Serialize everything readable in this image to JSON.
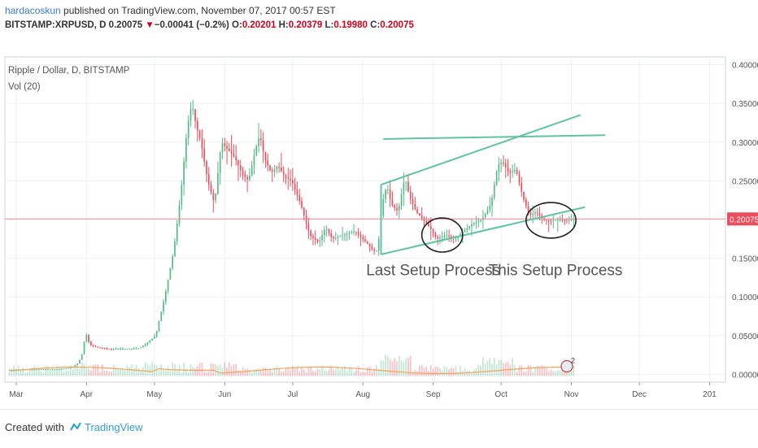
{
  "header": {
    "author": "hardacoskun",
    "published_text": " published on TradingView.com, November 07, 2017 00:57 EST",
    "symbol": "BITSTAMP:XRPUSD, D",
    "last": "0.20075",
    "change": "−0.00041 (−0.2%)",
    "o_label": "O:",
    "o_value": "0.20201",
    "h_label": "H:",
    "h_value": "0.20379",
    "l_label": "L:",
    "l_value": "0.19980",
    "c_label": "C:",
    "c_value": "0.20075"
  },
  "chart_data": {
    "type": "candlestick",
    "title": "Ripple / Dollar, D, BITSTAMP",
    "indicator": "Vol (20)",
    "y_ticks": [
      "0.40000",
      "0.35000",
      "0.30000",
      "0.25000",
      "0.20000",
      "0.15000",
      "0.10000",
      "0.05000",
      "0.00000"
    ],
    "y_tick_values": [
      0.4,
      0.35,
      0.3,
      0.25,
      0.2,
      0.15,
      0.1,
      0.05,
      0.0
    ],
    "ylim": [
      -0.01,
      0.41
    ],
    "x_ticks": [
      "Mar",
      "Apr",
      "May",
      "Jun",
      "Jul",
      "Aug",
      "Sep",
      "Oct",
      "Nov",
      "Dec",
      "201"
    ],
    "x_tick_days": [
      0,
      31,
      61,
      92,
      122,
      153,
      184,
      214,
      245,
      275,
      306
    ],
    "price_label": "0.20075",
    "price_value": 0.20075,
    "grid": true,
    "colors": {
      "up": "#53b987",
      "down": "#eb4d5c",
      "channel": "#5fc4a0",
      "price_line": "#f08a93",
      "volume_ma": "#f5a05a"
    },
    "price_path": [
      [
        -3,
        0.006
      ],
      [
        0,
        0.0063
      ],
      [
        10,
        0.0065
      ],
      [
        20,
        0.0068
      ],
      [
        25,
        0.009
      ],
      [
        28,
        0.015
      ],
      [
        30,
        0.03
      ],
      [
        31,
        0.055
      ],
      [
        33,
        0.038
      ],
      [
        36,
        0.035
      ],
      [
        42,
        0.033
      ],
      [
        50,
        0.033
      ],
      [
        55,
        0.034
      ],
      [
        58,
        0.04
      ],
      [
        62,
        0.05
      ],
      [
        66,
        0.1
      ],
      [
        70,
        0.16
      ],
      [
        73,
        0.23
      ],
      [
        76,
        0.32
      ],
      [
        78,
        0.35
      ],
      [
        80,
        0.32
      ],
      [
        82,
        0.3
      ],
      [
        85,
        0.25
      ],
      [
        88,
        0.22
      ],
      [
        91,
        0.3
      ],
      [
        94,
        0.29
      ],
      [
        97,
        0.28
      ],
      [
        100,
        0.26
      ],
      [
        103,
        0.25
      ],
      [
        106,
        0.29
      ],
      [
        108,
        0.31
      ],
      [
        110,
        0.28
      ],
      [
        113,
        0.26
      ],
      [
        116,
        0.27
      ],
      [
        119,
        0.255
      ],
      [
        122,
        0.25
      ],
      [
        126,
        0.22
      ],
      [
        130,
        0.18
      ],
      [
        134,
        0.17
      ],
      [
        137,
        0.19
      ],
      [
        140,
        0.175
      ],
      [
        145,
        0.18
      ],
      [
        150,
        0.185
      ],
      [
        155,
        0.17
      ],
      [
        158,
        0.16
      ],
      [
        160,
        0.16
      ],
      [
        162,
        0.22
      ],
      [
        164,
        0.245
      ],
      [
        166,
        0.22
      ],
      [
        169,
        0.21
      ],
      [
        172,
        0.255
      ],
      [
        174,
        0.23
      ],
      [
        177,
        0.21
      ],
      [
        180,
        0.2
      ],
      [
        183,
        0.19
      ],
      [
        186,
        0.175
      ],
      [
        190,
        0.18
      ],
      [
        194,
        0.175
      ],
      [
        198,
        0.185
      ],
      [
        202,
        0.195
      ],
      [
        206,
        0.2
      ],
      [
        210,
        0.22
      ],
      [
        213,
        0.27
      ],
      [
        215,
        0.275
      ],
      [
        218,
        0.26
      ],
      [
        221,
        0.265
      ],
      [
        224,
        0.23
      ],
      [
        227,
        0.205
      ],
      [
        230,
        0.21
      ],
      [
        233,
        0.2
      ],
      [
        236,
        0.198
      ],
      [
        240,
        0.2
      ],
      [
        244,
        0.198
      ],
      [
        246,
        0.2008
      ]
    ],
    "channel_upper": [
      [
        161,
        0.245
      ],
      [
        249,
        0.335
      ]
    ],
    "channel_lower": [
      [
        161,
        0.155
      ],
      [
        251,
        0.216
      ]
    ],
    "horizontal_line": [
      [
        162,
        0.304
      ],
      [
        260,
        0.309
      ]
    ],
    "annotations": [
      {
        "text": "Last Setup Process",
        "day": 184,
        "value": 0.128
      },
      {
        "text": "This Setup Process",
        "day": 238,
        "value": 0.128
      }
    ],
    "circles": [
      {
        "day": 188,
        "value": 0.18,
        "rx_days": 9,
        "ry_value": 0.022
      },
      {
        "day": 236,
        "value": 0.199,
        "rx_days": 11,
        "ry_value": 0.023
      }
    ],
    "marker_text": "2"
  },
  "footer": {
    "created_with": "Created with",
    "brand": "TradingView"
  }
}
